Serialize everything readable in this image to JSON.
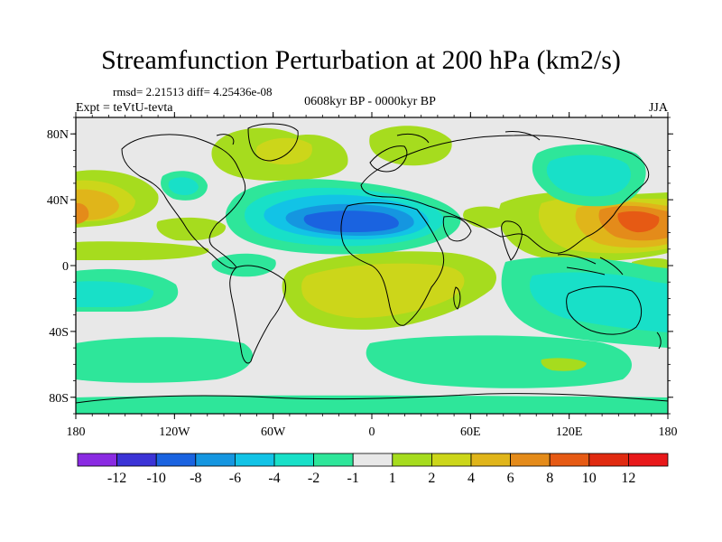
{
  "title": "Streamfunction Perturbation at 200 hPa (km2/s)",
  "stats": "rmsd= 2.21513 diff= 4.25436e-08",
  "experiment": "Expt = teVtU-tevta",
  "period": "0608kyr BP - 0000kyr BP",
  "season": "JJA",
  "lat_ticks": [
    "80N",
    "40N",
    "0",
    "40S",
    "80S"
  ],
  "lon_ticks": [
    "180",
    "120W",
    "60W",
    "0",
    "60E",
    "120E",
    "180"
  ],
  "colorbar": {
    "labels": [
      "-12",
      "-10",
      "-8",
      "-6",
      "-4",
      "-2",
      "-1",
      "1",
      "2",
      "4",
      "6",
      "8",
      "10",
      "12"
    ],
    "colors": [
      "#8a2be2",
      "#3b33d6",
      "#1a63e0",
      "#1596e0",
      "#12c3e6",
      "#18e0c8",
      "#2ee69a",
      "#e8e8e8",
      "#a6dc1e",
      "#ccd61a",
      "#e0b51a",
      "#e48b1a",
      "#e65a14",
      "#e02a10",
      "#e8181a"
    ]
  },
  "colors": {
    "neutral": "#e8e8e8",
    "negative_light": "#2ee69a",
    "negative_mid": "#18e0c8",
    "negative_strong": "#12c3e6",
    "negative_deep": "#1596e0",
    "negative_core": "#1a63e0",
    "positive_light": "#a6dc1e",
    "positive_mid": "#ccd61a",
    "positive_strong": "#e0b51a",
    "positive_deep": "#e48b1a",
    "positive_core": "#e65a14"
  }
}
